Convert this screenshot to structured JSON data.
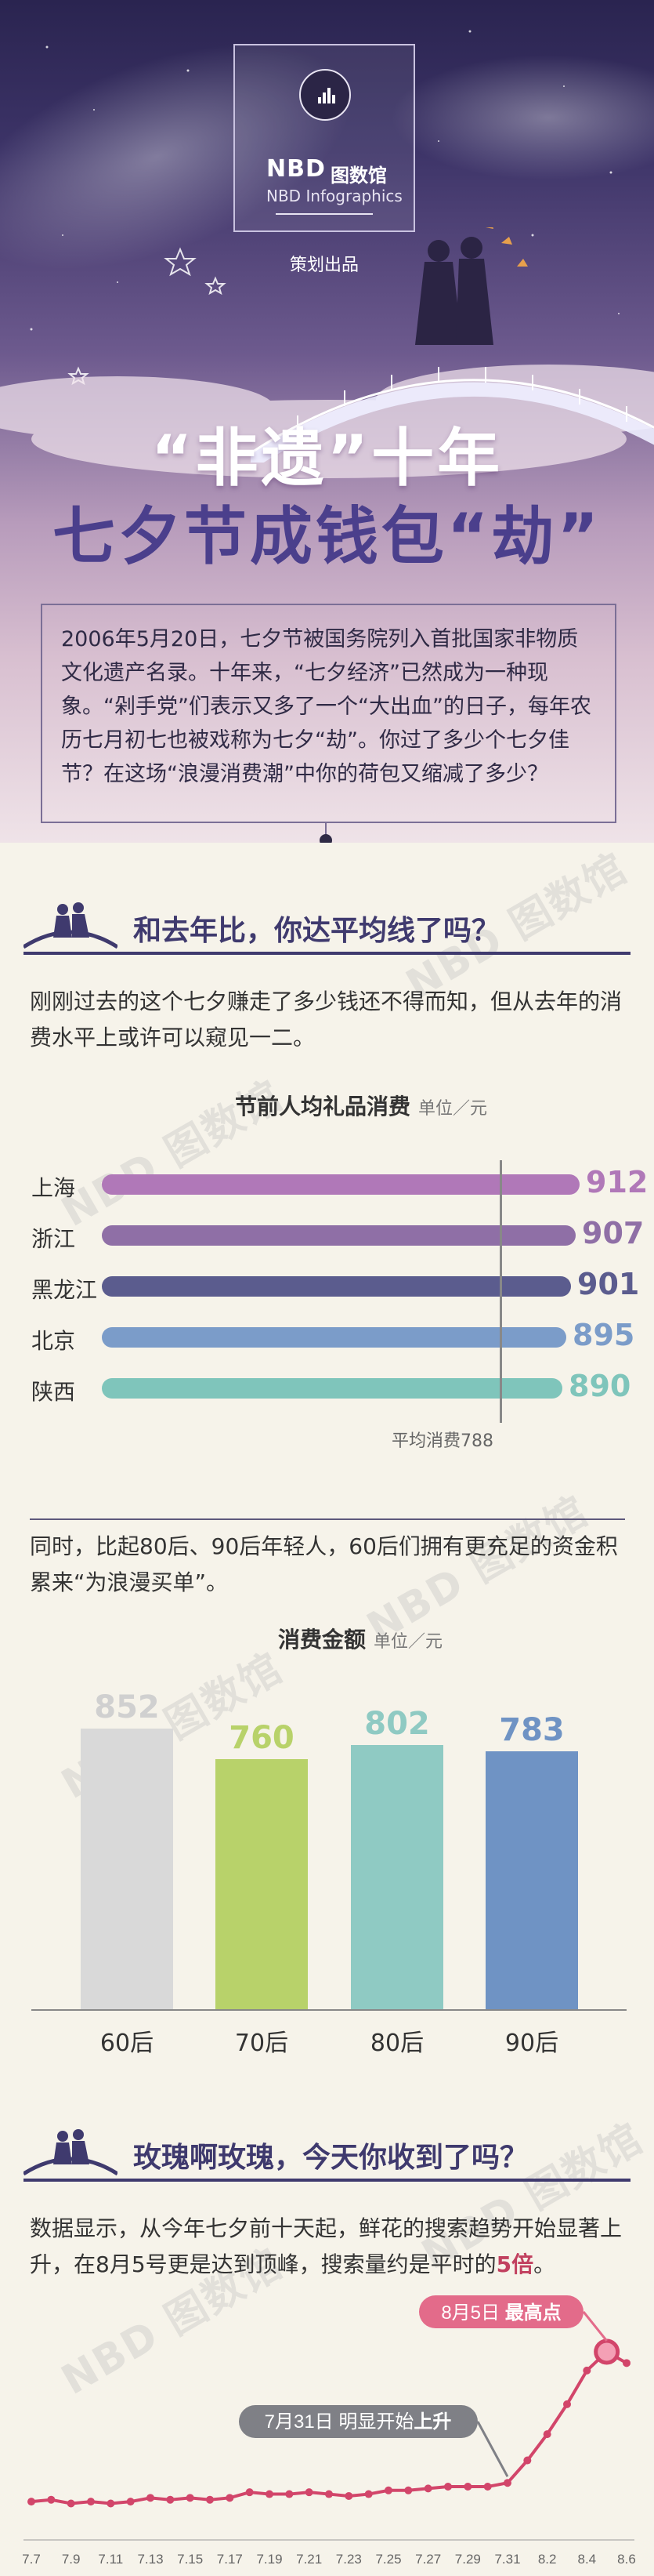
{
  "hero": {
    "logo_nbd": "NBD",
    "logo_cn": "图数馆",
    "logo_en": "NBD Infographics",
    "logo_made": "策划出品",
    "title_line1": "“非遗”十年",
    "title_line2": "七夕节成钱包“劫”",
    "intro": "2006年5月20日，七夕节被国务院列入首批国家非物质文化遗产名录。十年来，“七夕经济”已然成为一种现象。“剁手党”们表示又多了一个“大出血”的日子，每年农历七月初七也被戏称为七夕“劫”。你过了多少个七夕佳节？在这场“浪漫消费潮”中你的荷包又缩减了多少？"
  },
  "section1": {
    "heading": "和去年比，你达平均线了吗？",
    "paragraph": "刚刚过去的这个七夕赚走了多少钱还不得而知，但从去年的消费水平上或许可以窥见一二。"
  },
  "watermark": "NBD 图数馆",
  "chart1": {
    "title": "节前人均礼品消费",
    "unit": "单位／元",
    "avg_label": "平均消费788",
    "colors": [
      "#b078b8",
      "#8f6fa6",
      "#5b5c8e",
      "#7b9cc9",
      "#7fc5bb"
    ]
  },
  "chart2_intro": "同时，比起80后、90后年轻人，60后们拥有更充足的资金积累来“为浪漫买单”。",
  "chart2": {
    "title": "消费金额",
    "unit": "单位／元",
    "colors": [
      "#d9d9d9",
      "#b8d26a",
      "#8fcac3",
      "#6f93c4"
    ]
  },
  "section2": {
    "heading": "玫瑰啊玫瑰，今天你收到了吗？",
    "p1": "数据显示，从今年七夕前十天起，鲜花的搜索趋势开始显著上升，在8月5号更是达到顶峰，搜索量约是平时的",
    "p1_hl": "5倍",
    "p1_end": "。"
  },
  "chart3": {
    "peak_label_date": "8月5日",
    "peak_label_text": "最高点",
    "rise_label_date": "7月31日",
    "rise_label_text1": "明显开始",
    "rise_label_text2": "上升",
    "line_color": "#d2456a"
  },
  "chart_data": [
    {
      "type": "bar",
      "title": "节前人均礼品消费",
      "unit": "单位／元",
      "categories": [
        "上海",
        "浙江",
        "黑龙江",
        "北京",
        "陕西"
      ],
      "values": [
        912,
        907,
        901,
        895,
        890
      ],
      "reference_line": {
        "label": "平均消费788",
        "value": 788
      },
      "orientation": "horizontal"
    },
    {
      "type": "bar",
      "title": "消费金额",
      "unit": "单位／元",
      "categories": [
        "60后",
        "70后",
        "80后",
        "90后"
      ],
      "values": [
        852,
        760,
        802,
        783
      ],
      "orientation": "vertical"
    },
    {
      "type": "line",
      "x": [
        "7.7",
        "7.8",
        "7.9",
        "7.10",
        "7.11",
        "7.12",
        "7.13",
        "7.14",
        "7.15",
        "7.16",
        "7.17",
        "7.18",
        "7.19",
        "7.20",
        "7.21",
        "7.22",
        "7.23",
        "7.24",
        "7.25",
        "7.26",
        "7.27",
        "7.28",
        "7.29",
        "7.30",
        "7.31",
        "8.1",
        "8.2",
        "8.3",
        "8.4",
        "8.5",
        "8.6"
      ],
      "x_tick_labels": [
        "7.7",
        "7.9",
        "7.11",
        "7.13",
        "7.15",
        "7.17",
        "7.19",
        "7.21",
        "7.23",
        "7.25",
        "7.27",
        "7.29",
        "7.31",
        "8.2",
        "8.4",
        "8.6"
      ],
      "values": [
        1.0,
        1.05,
        0.95,
        1.0,
        0.95,
        1.0,
        1.1,
        1.05,
        1.1,
        1.05,
        1.1,
        1.25,
        1.2,
        1.2,
        1.25,
        1.2,
        1.15,
        1.2,
        1.3,
        1.3,
        1.35,
        1.4,
        1.4,
        1.4,
        1.5,
        2.1,
        2.8,
        3.6,
        4.5,
        5.0,
        4.7
      ],
      "annotations": [
        {
          "x": "7.31",
          "text": "7月31日 明显开始上升"
        },
        {
          "x": "8.5",
          "text": "8月5日 最高点"
        }
      ]
    }
  ]
}
